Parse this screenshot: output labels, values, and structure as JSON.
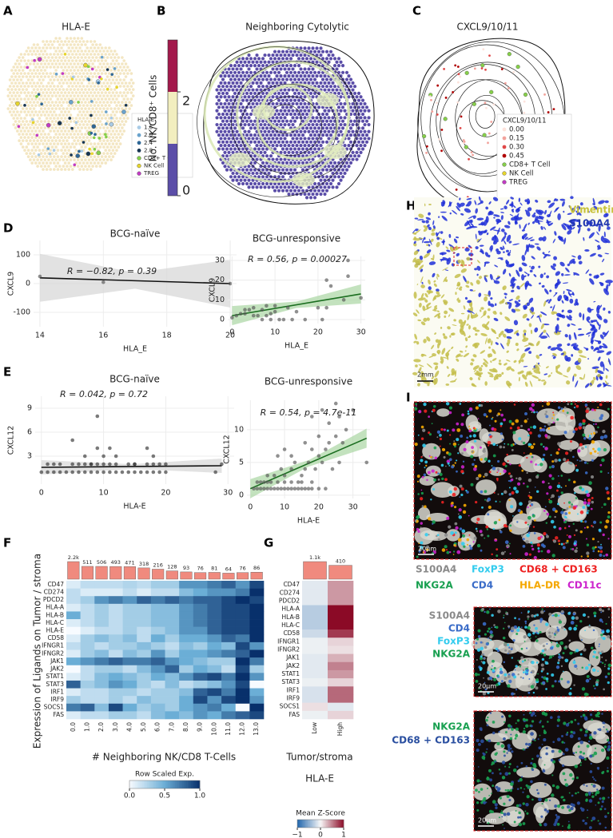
{
  "panel_labels": [
    "A",
    "B",
    "C",
    "D",
    "E",
    "F",
    "G",
    "H",
    "I"
  ],
  "panels": {
    "A": {
      "title": "HLA-E",
      "legend_title": "HLA-E",
      "legend": [
        {
          "label": "1.6",
          "color": "#a9cbe6"
        },
        {
          "label": "2.0",
          "color": "#6aa3cc"
        },
        {
          "label": "2.4",
          "color": "#2f6796"
        },
        {
          "label": "2.8",
          "color": "#173552"
        },
        {
          "label": "CD8+ T Cell",
          "color": "#86cf4a"
        },
        {
          "label": "NK Cell",
          "color": "#e6d52c"
        },
        {
          "label": "TREG",
          "color": "#c23bc4"
        }
      ]
    },
    "B": {
      "title": "Neighboring Cytolytic",
      "colorbar": {
        "label": "No. NK/CD8⁺ Cells",
        "lim": [
          0,
          3
        ],
        "ticks": [
          0,
          2
        ],
        "colors": [
          "#5b4ea8",
          "#f2eebf",
          "#a3194c"
        ]
      }
    },
    "C": {
      "title": "CXCL9/10/11",
      "legend_title": "CXCL9/10/11",
      "legend": [
        {
          "label": "0.00",
          "color": "#fde3dc"
        },
        {
          "label": "0.15",
          "color": "#f2a39c"
        },
        {
          "label": "0.30",
          "color": "#e04848"
        },
        {
          "label": "0.45",
          "color": "#b00000"
        },
        {
          "label": "CD8+ T Cell",
          "color": "#86cf4a"
        },
        {
          "label": "NK Cell",
          "color": "#e6d52c"
        },
        {
          "label": "TREG",
          "color": "#c23bc4"
        }
      ]
    },
    "H": {
      "labels": [
        {
          "label": "Vimentin",
          "color": "#c8c23a"
        },
        {
          "label": "S100A4",
          "color": "#2238b0"
        }
      ],
      "scale": "2mm"
    },
    "I": {
      "scale": "20µm",
      "legend_rows": [
        [
          {
            "label": "S100A4",
            "color": "#8a8a8a"
          },
          {
            "label": "FoxP3",
            "color": "#33ccee"
          },
          {
            "label": "CD68 + CD163",
            "color": "#ee2222"
          }
        ],
        [
          {
            "label": "NKG2A",
            "color": "#18a050"
          },
          {
            "label": "CD4",
            "color": "#3a6cc8"
          },
          {
            "label": "HLA-DR",
            "color": "#f5a800"
          },
          {
            "label": "CD11c",
            "color": "#cc22cc"
          }
        ]
      ],
      "inset1": {
        "labels": [
          {
            "label": "S100A4",
            "color": "#8a8a8a"
          },
          {
            "label": "CD4",
            "color": "#3a6cc8"
          },
          {
            "label": "FoxP3",
            "color": "#33ccee"
          },
          {
            "label": "NKG2A",
            "color": "#18a050"
          }
        ],
        "scale": "20µm"
      },
      "inset2": {
        "labels": [
          {
            "label": "NKG2A",
            "color": "#18a050"
          },
          {
            "label": "CD68 + CD163",
            "color": "#2a4fa0"
          }
        ],
        "scale": "20µm"
      }
    }
  },
  "chart_data": [
    {
      "type": "scatter",
      "title": "BCG-naïve",
      "annotation": "R = −0.82, p = 0.39",
      "x_label": "HLA_E",
      "y_label": "CXCL9",
      "x": [
        14,
        16,
        20
      ],
      "y": [
        25,
        5,
        0
      ],
      "xlim": [
        13.8,
        20.2
      ],
      "ylim": [
        -150,
        150
      ],
      "xticks": [
        14,
        16,
        18,
        20
      ],
      "yticks": [
        -100,
        0,
        100
      ],
      "point_color": "#555555",
      "fit": {
        "x": [
          14,
          20
        ],
        "y": [
          20,
          0
        ]
      },
      "fit_color": "#111111",
      "band_color": "#d6d6d6",
      "grid": true
    },
    {
      "type": "scatter",
      "title": "BCG-unresponsive",
      "annotation": "R = 0.56, p = 0.00027",
      "x_label": "HLA_E",
      "y_label": "CXCL9",
      "x": [
        0,
        1,
        2,
        3,
        3,
        4,
        5,
        5,
        6,
        7,
        7,
        8,
        8,
        9,
        9,
        10,
        10,
        11,
        12,
        13,
        14,
        15,
        17,
        20,
        21,
        22,
        22,
        23,
        26,
        27,
        27,
        30
      ],
      "y": [
        1,
        2,
        3,
        3,
        5,
        5,
        2,
        6,
        2,
        5,
        0,
        2,
        7,
        3,
        0,
        4,
        7,
        0,
        0,
        6,
        0,
        4,
        0,
        6,
        0,
        20,
        6,
        17,
        10,
        22,
        30,
        11
      ],
      "xlim": [
        -1,
        31
      ],
      "ylim": [
        -2,
        32
      ],
      "xticks": [
        0,
        10,
        20,
        30
      ],
      "yticks": [
        0,
        10,
        20,
        30
      ],
      "point_color": "#555555",
      "fit": {
        "x": [
          0,
          30
        ],
        "y": [
          2,
          13
        ]
      },
      "fit_color": "#1b6e20",
      "band_color": "#a9d6a2",
      "grid": true
    },
    {
      "type": "scatter",
      "title": "BCG-naïve",
      "annotation": "R = 0.042, p = 0.72",
      "x_label": "HLA-E",
      "y_label": "CXCL12",
      "x": [
        0,
        1,
        2,
        3,
        4,
        5,
        6,
        7,
        8,
        9,
        10,
        11,
        12,
        13,
        14,
        15,
        16,
        17,
        18,
        19,
        20,
        1,
        2,
        3,
        5,
        6,
        7,
        8,
        9,
        10,
        11,
        12,
        14,
        15,
        17,
        18,
        20,
        5,
        7,
        8,
        9,
        9,
        10,
        11,
        12,
        15,
        17,
        18,
        19,
        28,
        29
      ],
      "y": [
        1,
        1,
        1,
        1,
        1,
        1,
        1,
        1,
        1,
        1,
        1,
        1,
        1,
        1,
        1,
        1,
        1,
        1,
        1,
        1,
        1,
        2,
        2,
        2,
        2,
        2,
        2,
        2,
        2,
        2,
        2,
        2,
        2,
        2,
        2,
        2,
        2,
        5,
        3,
        2,
        8,
        4,
        3,
        4,
        3,
        2,
        4,
        3,
        2,
        1,
        2
      ],
      "xlim": [
        -1,
        31
      ],
      "ylim": [
        -0.5,
        10.5
      ],
      "xticks": [
        0,
        10,
        20,
        30
      ],
      "yticks": [
        3,
        6,
        9
      ],
      "point_color": "#333333",
      "fit": {
        "x": [
          0,
          29
        ],
        "y": [
          1.6,
          1.8
        ]
      },
      "fit_color": "#111111",
      "band_color": "#d6d6d6",
      "grid": true
    },
    {
      "type": "scatter",
      "title": "BCG-unresponsive",
      "annotation": "R = 0.54, p = 4.7e-11",
      "x_label": "HLA-E",
      "y_label": "CXCL12",
      "x": [
        1,
        2,
        3,
        4,
        5,
        6,
        7,
        8,
        9,
        10,
        11,
        12,
        13,
        14,
        15,
        16,
        17,
        18,
        20,
        22,
        2,
        3,
        4,
        5,
        6,
        8,
        10,
        12,
        14,
        15,
        18,
        5,
        7,
        9,
        10,
        12,
        13,
        15,
        16,
        17,
        19,
        20,
        21,
        24,
        26,
        8,
        10,
        12,
        16,
        18,
        20,
        22,
        23,
        25,
        27,
        28,
        18,
        21,
        23,
        25,
        26,
        30,
        34
      ],
      "y": [
        1,
        1,
        1,
        1,
        1,
        1,
        1,
        1,
        1,
        1,
        1,
        1,
        1,
        1,
        1,
        1,
        1,
        1,
        1,
        1,
        2,
        2,
        2,
        2,
        2,
        2,
        2,
        2,
        2,
        2,
        2,
        3,
        3,
        4,
        3,
        4,
        5,
        3,
        4,
        5,
        4,
        6,
        5,
        4,
        5,
        6,
        7,
        6,
        8,
        7,
        9,
        7,
        8,
        9,
        8,
        10,
        12,
        13,
        11,
        14,
        12,
        13,
        5
      ],
      "xlim": [
        -1,
        35
      ],
      "ylim": [
        -0.5,
        14.5
      ],
      "xticks": [
        0,
        10,
        20,
        30
      ],
      "yticks": [
        0,
        5,
        10
      ],
      "point_color": "#555555",
      "fit": {
        "x": [
          0,
          34
        ],
        "y": [
          1,
          8.7
        ]
      },
      "fit_color": "#1b6e20",
      "band_color": "#a9d6a2",
      "grid": true
    },
    {
      "type": "heatmap",
      "x_label": "# Neighboring NK/CD8 T-Cells",
      "y_label": "Expression of Ligands on Tumor / stroma",
      "rows": [
        "CD47",
        "CD274",
        "PDCD2",
        "HLA-A",
        "HLA-B",
        "HLA-C",
        "HLA-E",
        "CD58",
        "IFNGR1",
        "IFNGR2",
        "JAK1",
        "JAK2",
        "STAT1",
        "STAT3",
        "IRF1",
        "IRF9",
        "SOCS1",
        "FAS"
      ],
      "columns": [
        "0.0",
        "1.0",
        "2.0",
        "3.0",
        "4.0",
        "5.0",
        "6.0",
        "7.0",
        "8.0",
        "9.0",
        "10.0",
        "11.0",
        "12.0",
        "13.0"
      ],
      "counts": [
        2200,
        511,
        506,
        493,
        471,
        318,
        216,
        128,
        93,
        76,
        81,
        64,
        76,
        86
      ],
      "count_labels": [
        "2.2k",
        "511",
        "506",
        "493",
        "471",
        "318",
        "216",
        "128",
        "93",
        "76",
        "81",
        "64",
        "76",
        "86"
      ],
      "count_scale": "log",
      "count_lim": [
        10,
        2200
      ],
      "count_color": "#f08a7e",
      "values": [
        [
          0.1,
          0.2,
          0.2,
          0.2,
          0.25,
          0.2,
          0.3,
          0.3,
          0.6,
          0.6,
          0.7,
          0.8,
          0.6,
          0.9
        ],
        [
          0.2,
          0.1,
          0.1,
          0.1,
          0.2,
          0.1,
          0.2,
          0.2,
          0.4,
          0.5,
          0.6,
          0.6,
          0.7,
          1.0
        ],
        [
          0.2,
          0.3,
          0.6,
          0.7,
          0.6,
          0.8,
          0.7,
          0.8,
          0.7,
          0.8,
          0.8,
          0.9,
          1.0,
          0.9
        ],
        [
          0.1,
          0.2,
          0.3,
          0.2,
          0.3,
          0.3,
          0.4,
          0.4,
          0.6,
          0.7,
          0.8,
          0.9,
          0.9,
          1.0
        ],
        [
          0.5,
          0.2,
          0.3,
          0.2,
          0.3,
          0.3,
          0.4,
          0.4,
          0.6,
          0.7,
          0.8,
          0.9,
          0.9,
          1.0
        ],
        [
          0.1,
          0.2,
          0.3,
          0.2,
          0.3,
          0.3,
          0.4,
          0.4,
          0.6,
          0.7,
          0.8,
          0.9,
          0.9,
          1.0
        ],
        [
          0.0,
          0.1,
          0.2,
          0.2,
          0.3,
          0.2,
          0.3,
          0.4,
          0.6,
          0.6,
          0.8,
          0.9,
          0.9,
          1.0
        ],
        [
          0.1,
          0.3,
          0.4,
          0.3,
          0.4,
          0.2,
          0.5,
          0.3,
          0.5,
          0.5,
          0.6,
          0.8,
          0.7,
          1.0
        ],
        [
          0.2,
          0.3,
          0.2,
          0.3,
          0.3,
          0.4,
          0.3,
          0.2,
          0.4,
          0.3,
          0.5,
          0.4,
          0.9,
          0.6
        ],
        [
          0.1,
          0.3,
          0.4,
          0.2,
          0.4,
          0.3,
          0.6,
          0.3,
          0.5,
          0.5,
          0.6,
          0.7,
          0.8,
          1.0
        ],
        [
          0.5,
          0.6,
          0.7,
          0.8,
          0.7,
          0.7,
          0.8,
          0.6,
          0.5,
          0.4,
          0.3,
          0.3,
          1.0,
          0.7
        ],
        [
          0.0,
          0.2,
          0.3,
          0.3,
          0.2,
          0.4,
          0.6,
          0.8,
          0.3,
          0.5,
          0.4,
          0.2,
          0.9,
          0.3
        ],
        [
          0.1,
          0.2,
          0.4,
          0.5,
          0.4,
          0.3,
          0.5,
          0.4,
          0.6,
          0.8,
          0.9,
          0.7,
          1.0,
          0.6
        ],
        [
          0.8,
          0.3,
          0.4,
          0.6,
          0.5,
          0.3,
          0.2,
          0.4,
          0.2,
          0.3,
          0.4,
          0.6,
          0.9,
          0.0
        ],
        [
          0.1,
          0.2,
          0.2,
          0.3,
          0.3,
          0.2,
          0.3,
          0.3,
          0.4,
          0.8,
          0.9,
          0.7,
          1.0,
          0.5
        ],
        [
          0.3,
          0.2,
          0.2,
          0.3,
          0.2,
          0.4,
          0.3,
          0.3,
          0.5,
          0.9,
          0.6,
          0.9,
          1.0,
          0.6
        ],
        [
          0.7,
          0.8,
          0.4,
          0.9,
          0.5,
          0.3,
          0.4,
          0.3,
          0.5,
          0.6,
          0.7,
          0.5,
          0.0,
          1.0
        ],
        [
          0.1,
          0.2,
          0.2,
          0.3,
          0.3,
          0.2,
          0.4,
          0.5,
          0.4,
          0.6,
          0.5,
          0.7,
          0.8,
          0.9
        ]
      ],
      "colorbar": {
        "label": "Row Scaled Exp.",
        "lim": [
          0,
          1
        ],
        "ticks": [
          {
            "value": 0,
            "label": "0.0"
          },
          0.5,
          {
            "value": 1,
            "label": "1.0"
          }
        ],
        "colors": [
          "#f7fbff",
          "#6baed6",
          "#08306b"
        ]
      }
    },
    {
      "type": "heatmap",
      "x_label": [
        "Tumor/stroma",
        "HLA-E"
      ],
      "rows": [
        "CD47",
        "CD274",
        "PDCD2",
        "HLA-A",
        "HLA-B",
        "HLA-C",
        "CD58",
        "IFNGR1",
        "IFNGR2",
        "JAK1",
        "JAK2",
        "STAT1",
        "STAT3",
        "IRF1",
        "IRF9",
        "SOCS1",
        "FAS"
      ],
      "columns": [
        "Low",
        "High"
      ],
      "counts": [
        1100,
        410
      ],
      "count_labels": [
        "1.1k",
        "410"
      ],
      "count_scale": "log",
      "count_lim": [
        10,
        1100
      ],
      "count_color": "#f08a7e",
      "values": [
        [
          -0.1,
          0.4
        ],
        [
          -0.1,
          0.4
        ],
        [
          -0.1,
          0.4
        ],
        [
          -0.3,
          1.0
        ],
        [
          -0.3,
          1.0
        ],
        [
          -0.3,
          1.0
        ],
        [
          -0.2,
          0.8
        ],
        [
          -0.05,
          0.15
        ],
        [
          -0.05,
          0.1
        ],
        [
          -0.1,
          0.3
        ],
        [
          -0.1,
          0.5
        ],
        [
          -0.1,
          0.4
        ],
        [
          -0.05,
          0.15
        ],
        [
          -0.15,
          0.6
        ],
        [
          -0.15,
          0.6
        ],
        [
          0.1,
          -0.1
        ],
        [
          -0.05,
          0.15
        ]
      ],
      "colorbar": {
        "label": "Mean Z-Score",
        "lim": [
          -1,
          1
        ],
        "ticks": [
          {
            "value": -1,
            "label": "−1"
          },
          0,
          1
        ],
        "colors": [
          "#2166ac",
          "#f7f7f7",
          "#8b0a26"
        ]
      }
    }
  ]
}
